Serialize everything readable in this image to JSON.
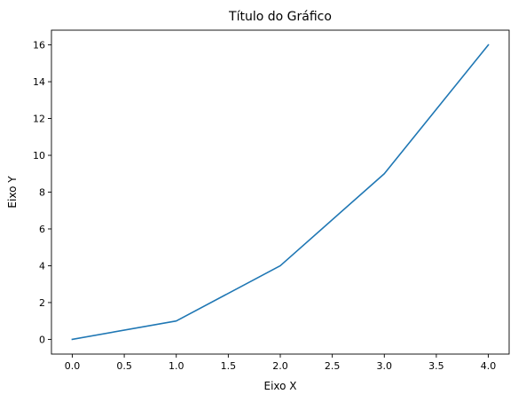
{
  "chart_data": {
    "type": "line",
    "title": "Título do Gráfico",
    "xlabel": "Eixo X",
    "ylabel": "Eixo Y",
    "x": [
      0,
      1,
      2,
      3,
      4
    ],
    "series": [
      {
        "values": [
          0,
          1,
          4,
          9,
          16
        ],
        "color": "#1f77b4"
      }
    ],
    "xlim": [
      -0.2,
      4.2
    ],
    "ylim": [
      -0.8,
      16.8
    ],
    "xticks": [
      0.0,
      0.5,
      1.0,
      1.5,
      2.0,
      2.5,
      3.0,
      3.5,
      4.0
    ],
    "xtick_labels": [
      "0.0",
      "0.5",
      "1.0",
      "1.5",
      "2.0",
      "2.5",
      "3.0",
      "3.5",
      "4.0"
    ],
    "yticks": [
      0,
      2,
      4,
      6,
      8,
      10,
      12,
      14,
      16
    ],
    "ytick_labels": [
      "0",
      "2",
      "4",
      "6",
      "8",
      "10",
      "12",
      "14",
      "16"
    ],
    "grid": false,
    "legend": false
  }
}
